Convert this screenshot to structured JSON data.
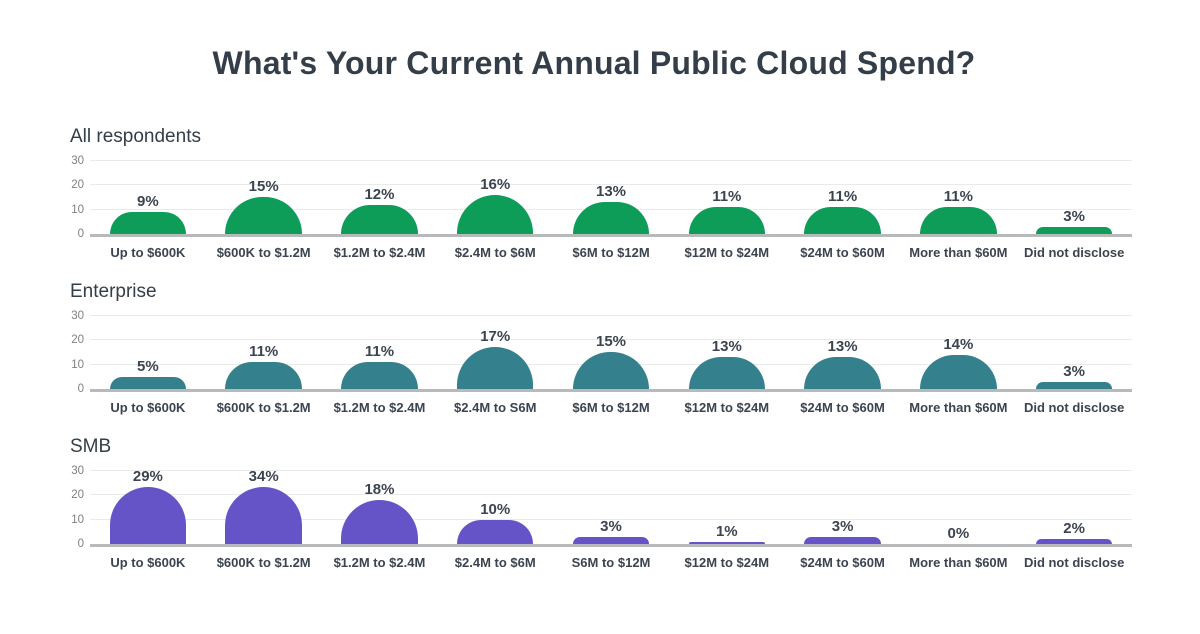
{
  "title": "What's Your Current Annual Public Cloud Spend?",
  "y_axis": {
    "ticks": [
      0,
      10,
      20,
      30
    ],
    "ylim": [
      0,
      30
    ],
    "grid": true
  },
  "chart_data": [
    {
      "type": "bar",
      "heading": "All respondents",
      "color": "#0e9c59",
      "value_suffix": "%",
      "categories": [
        "Up to $600K",
        "$600K to $1.2M",
        "$1.2M to $2.4M",
        "$2.4M to $6M",
        "$6M to $12M",
        "$12M to $24M",
        "$24M to $60M",
        "More than $60M",
        "Did not disclose"
      ],
      "values": [
        9,
        15,
        12,
        16,
        13,
        11,
        11,
        11,
        3
      ]
    },
    {
      "type": "bar",
      "heading": "Enterprise",
      "color": "#35808d",
      "value_suffix": "%",
      "categories": [
        "Up to $600K",
        "$600K to $1.2M",
        "$1.2M to $2.4M",
        "$2.4M to S6M",
        "$6M to $12M",
        "$12M to $24M",
        "$24M to $60M",
        "More than $60M",
        "Did not disclose"
      ],
      "values": [
        5,
        11,
        11,
        17,
        15,
        13,
        13,
        14,
        3
      ]
    },
    {
      "type": "bar",
      "heading": "SMB",
      "color": "#6554c8",
      "value_suffix": "%",
      "categories": [
        "Up to $600K",
        "$600K to $1.2M",
        "$1.2M to $2.4M",
        "$2.4M to $6M",
        "S6M to $12M",
        "$12M to $24M",
        "$24M to $60M",
        "More than $60M",
        "Did not disclose"
      ],
      "values": [
        29,
        34,
        18,
        10,
        3,
        1,
        3,
        0,
        2
      ]
    }
  ]
}
